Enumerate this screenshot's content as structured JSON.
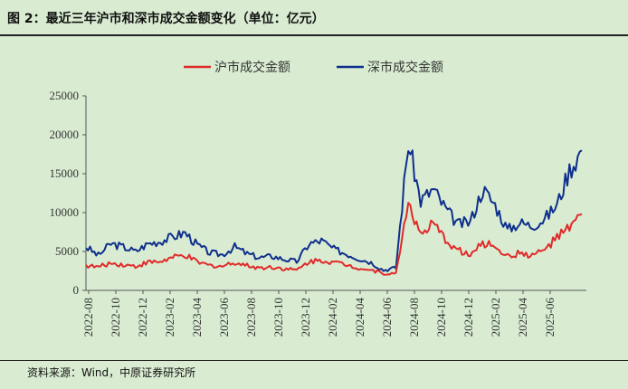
{
  "header": {
    "title": "图 2：最近三年沪市和深市成交金额变化（单位：亿元）"
  },
  "footer": {
    "source": "资料来源：Wind，中原证券研究所"
  },
  "colors": {
    "background": "#d9ecd2",
    "sh_series": "#e02a2a",
    "sz_series": "#0f2f8c"
  },
  "chart_data": {
    "type": "line",
    "title": "",
    "xlabel": "",
    "ylabel": "",
    "ylim": [
      0,
      25000
    ],
    "yticks": [
      0,
      5000,
      10000,
      15000,
      20000,
      25000
    ],
    "xticks": [
      "2022-08",
      "2022-10",
      "2022-12",
      "2023-02",
      "2023-04",
      "2023-06",
      "2023-08",
      "2023-10",
      "2023-12",
      "2024-02",
      "2024-04",
      "2024-06",
      "2024-08",
      "2024-10",
      "2024-12",
      "2025-02",
      "2025-04",
      "2025-06"
    ],
    "legend_position": "top-center",
    "grid": false,
    "x": [
      "2022-08",
      "2022-09",
      "2022-10",
      "2022-11",
      "2022-12",
      "2023-01",
      "2023-02",
      "2023-03",
      "2023-04",
      "2023-05",
      "2023-06",
      "2023-07",
      "2023-08",
      "2023-09",
      "2023-10",
      "2023-11",
      "2023-12",
      "2024-01",
      "2024-02",
      "2024-03",
      "2024-04",
      "2024-05",
      "2024-06",
      "2024-07",
      "2024-08",
      "2024-09a",
      "2024-09b",
      "2024-10a",
      "2024-10b",
      "2024-11",
      "2024-12",
      "2025-01",
      "2025-02",
      "2025-03",
      "2025-04",
      "2025-05",
      "2025-06",
      "2025-07a",
      "2025-07b",
      "2025-08a",
      "2025-08b"
    ],
    "series": [
      {
        "name": "沪市成交金额",
        "color": "#e02a2a",
        "values": [
          3200,
          3000,
          3500,
          3300,
          3100,
          3600,
          3700,
          4200,
          4500,
          3600,
          3200,
          3100,
          3600,
          3200,
          2900,
          3000,
          2800,
          2600,
          3700,
          3900,
          3600,
          3300,
          2900,
          2600,
          2200,
          2100,
          11500,
          7000,
          8500,
          6500,
          5200,
          4500,
          6000,
          5800,
          4300,
          4800,
          4500,
          5200,
          6800,
          8000,
          9800
        ]
      },
      {
        "name": "深市成交金额",
        "color": "#0f2f8c",
        "values": [
          5600,
          4500,
          6000,
          5600,
          5000,
          6000,
          6300,
          6900,
          7400,
          5800,
          4800,
          4600,
          5600,
          4700,
          4200,
          4400,
          4000,
          3700,
          6000,
          6400,
          5300,
          4700,
          4100,
          3600,
          2600,
          2900,
          19000,
          11500,
          13000,
          10500,
          8500,
          8800,
          13000,
          11000,
          7800,
          8700,
          8300,
          9200,
          11000,
          15500,
          18000
        ]
      }
    ]
  }
}
